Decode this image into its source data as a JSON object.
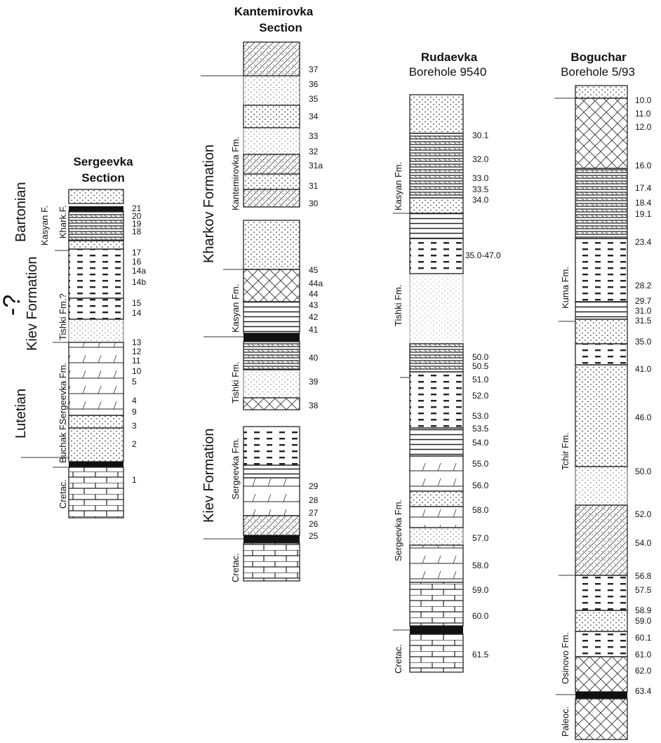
{
  "sections": [
    {
      "id": "sergeevka",
      "title": [
        "Sergeevka",
        "Section"
      ],
      "labels": [
        "21",
        "20",
        "19",
        "18",
        "17",
        "16",
        "14a",
        "14b",
        "15",
        "14",
        "13",
        "12",
        "11",
        "10",
        "5",
        "4",
        "9",
        "3",
        "2",
        "1"
      ],
      "formations": [
        "Khark.F.",
        "Kasyan F.",
        "Tishki Fm.?",
        "Kiev Formation",
        "Sergeevka Fm.",
        "Buchak F.",
        "Cretac."
      ],
      "stages": [
        "Bartonian",
        "Lutetian"
      ],
      "uncertain": "-?"
    },
    {
      "id": "kantemirovka",
      "title": [
        "Kantemirovka",
        "Section"
      ],
      "labels": [
        "37",
        "36",
        "35",
        "34",
        "33",
        "32",
        "31a",
        "31",
        "30",
        "45",
        "44a",
        "44",
        "43",
        "42",
        "41",
        "40",
        "39",
        "38",
        "29",
        "28",
        "27",
        "26",
        "25"
      ],
      "formations": [
        "Kharkov Formation",
        "Kantemirovka Fm.",
        "Kasyan Fm.",
        "Tishki Fm.",
        "Kiev Formation",
        "Sergeevka Fm.",
        "Cretac."
      ]
    },
    {
      "id": "rudaevka",
      "title": [
        "Rudaevka",
        "Borehole 9540"
      ],
      "labels": [
        "30.1",
        "32.0",
        "33.0",
        "33.5",
        "34.0",
        "35.0-47.0",
        "50.0",
        "50.5",
        "51.0",
        "52.0",
        "53.0",
        "53.5",
        "54.0",
        "55.0",
        "56.0",
        "58.0",
        "57.0",
        "58.0",
        "59.0",
        "60.0",
        "61.5"
      ],
      "formations": [
        "Kasyan Fm.",
        "Tishki Fm.",
        "Sergeevka Fm.",
        "Cretac."
      ]
    },
    {
      "id": "boguchar",
      "title": [
        "Boguchar",
        "Borehole 5/93"
      ],
      "labels": [
        "10.0",
        "11.0",
        "12.0",
        "16.0",
        "17.4",
        "18.4",
        "19.1",
        "23.4",
        "28.2",
        "29.7",
        "31.0",
        "31.5",
        "35.0",
        "41.0",
        "46.0",
        "50.0",
        "52.0",
        "54.0",
        "56.8",
        "57.5",
        "58.9",
        "59.0",
        "60.1",
        "61.0",
        "62.0",
        "63.4"
      ],
      "formations": [
        "Kuma Fm.",
        "Tchir Fm.",
        "Osinovo Fm.",
        "Paleoc."
      ]
    }
  ]
}
